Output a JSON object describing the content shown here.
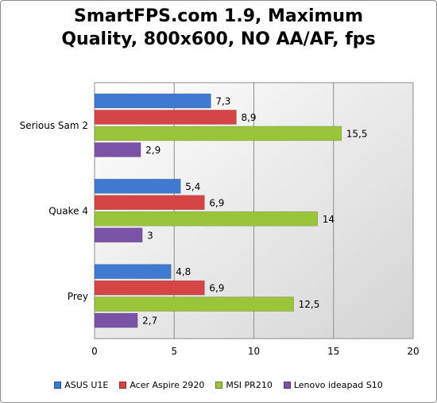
{
  "chart_data": {
    "type": "bar",
    "orientation": "horizontal",
    "title_lines": [
      "SmartFPS.com 1.9, Maximum",
      "Quality, 800x600, NO AA/AF, fps"
    ],
    "categories": [
      "Serious Sam 2",
      "Quake 4",
      "Prey"
    ],
    "series": [
      {
        "name": "ASUS U1E",
        "color": "#3f7ad0",
        "values": [
          7.3,
          5.4,
          4.8
        ],
        "labels": [
          "7,3",
          "5,4",
          "4,8"
        ]
      },
      {
        "name": "Acer Aspire 2920",
        "color": "#d64545",
        "values": [
          8.9,
          6.9,
          6.9
        ],
        "labels": [
          "8,9",
          "6,9",
          "6,9"
        ]
      },
      {
        "name": "MSI PR210",
        "color": "#9ac43a",
        "values": [
          15.5,
          14,
          12.5
        ],
        "labels": [
          "15,5",
          "14",
          "12,5"
        ]
      },
      {
        "name": "Lenovo ideapad S10",
        "color": "#7a52a6",
        "values": [
          2.9,
          3,
          2.7
        ],
        "labels": [
          "2,9",
          "3",
          "2,7"
        ]
      }
    ],
    "xlim": [
      0,
      20
    ],
    "xticks": [
      "0",
      "5",
      "10",
      "15",
      "20"
    ],
    "grid": true,
    "legend_position": "bottom"
  }
}
